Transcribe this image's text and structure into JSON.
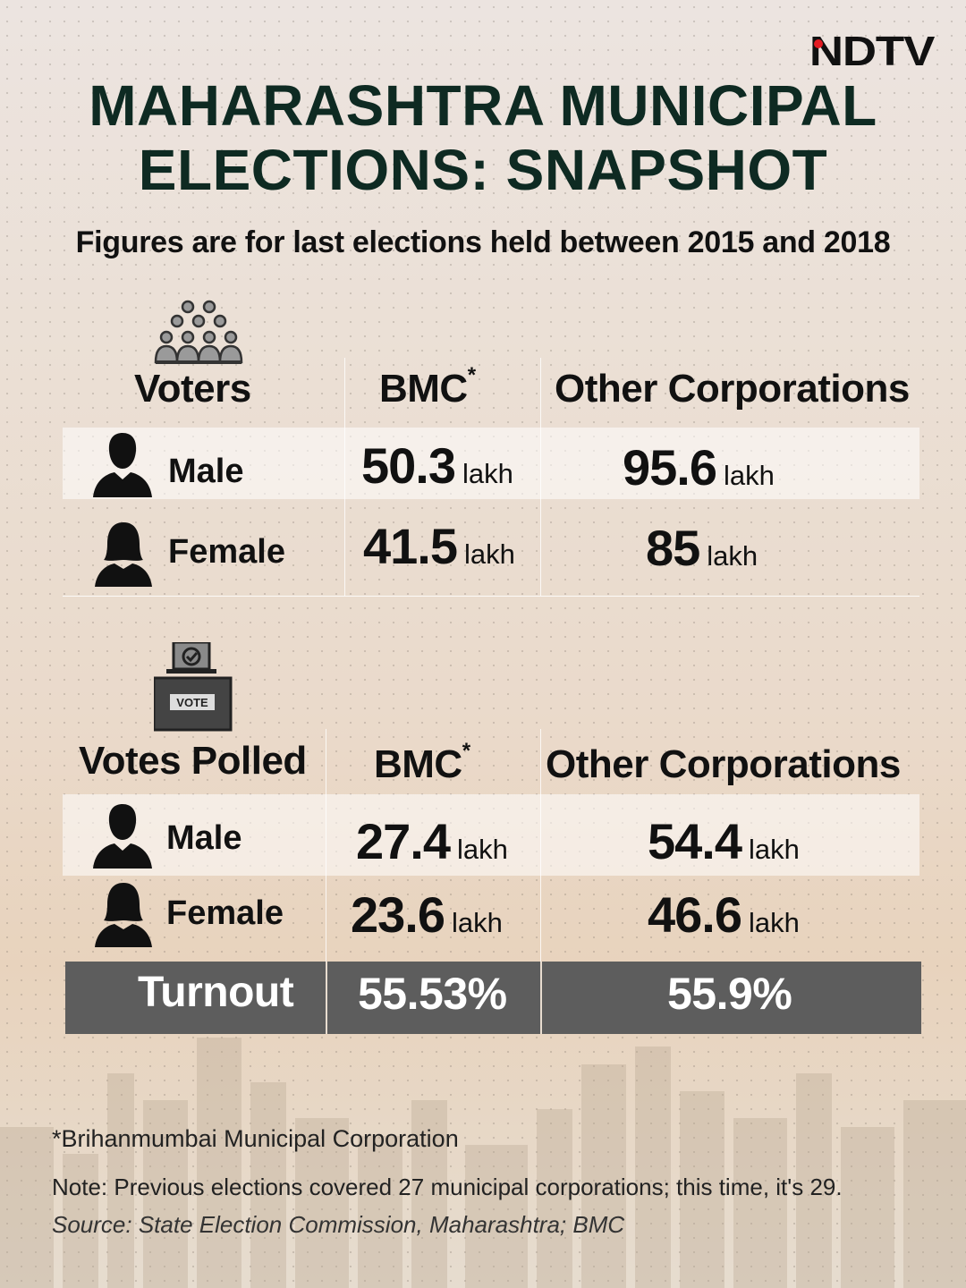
{
  "brand": {
    "logo": "NDTV"
  },
  "title": {
    "line1": "MAHARASHTRA MUNICIPAL",
    "line2": "ELECTIONS: SNAPSHOT"
  },
  "subtitle": "Figures are for last elections held between 2015 and 2018",
  "voters": {
    "heading": "Voters",
    "col_bmc": "BMC",
    "col_bmc_mark": "*",
    "col_other": "Other Corporations",
    "rows": [
      {
        "label": "Male",
        "bmc": "50.3",
        "other": "95.6"
      },
      {
        "label": "Female",
        "bmc": "41.5",
        "other": "85"
      }
    ]
  },
  "votes_polled": {
    "heading": "Votes Polled",
    "col_bmc": "BMC",
    "col_bmc_mark": "*",
    "col_other": "Other Corporations",
    "rows": [
      {
        "label": "Male",
        "bmc": "27.4",
        "other": "54.4"
      },
      {
        "label": "Female",
        "bmc": "23.6",
        "other": "46.6"
      }
    ]
  },
  "unit": "lakh",
  "vote_box_label": "VOTE",
  "turnout": {
    "label": "Turnout",
    "bmc": "55.53%",
    "other": "55.9%"
  },
  "footnote": "*Brihanmumbai Municipal Corporation",
  "note": "Note: Previous elections covered 27 municipal corporations; this time, it's 29.",
  "source": "Source: State Election Commission, Maharashtra; BMC",
  "colors": {
    "title": "#0e2a22",
    "turnout_bar": "#5d5d5d",
    "logo_dot": "#e31b23"
  },
  "icons": [
    "crowd-icon",
    "male-person-icon",
    "female-person-icon",
    "ballot-box-icon"
  ]
}
